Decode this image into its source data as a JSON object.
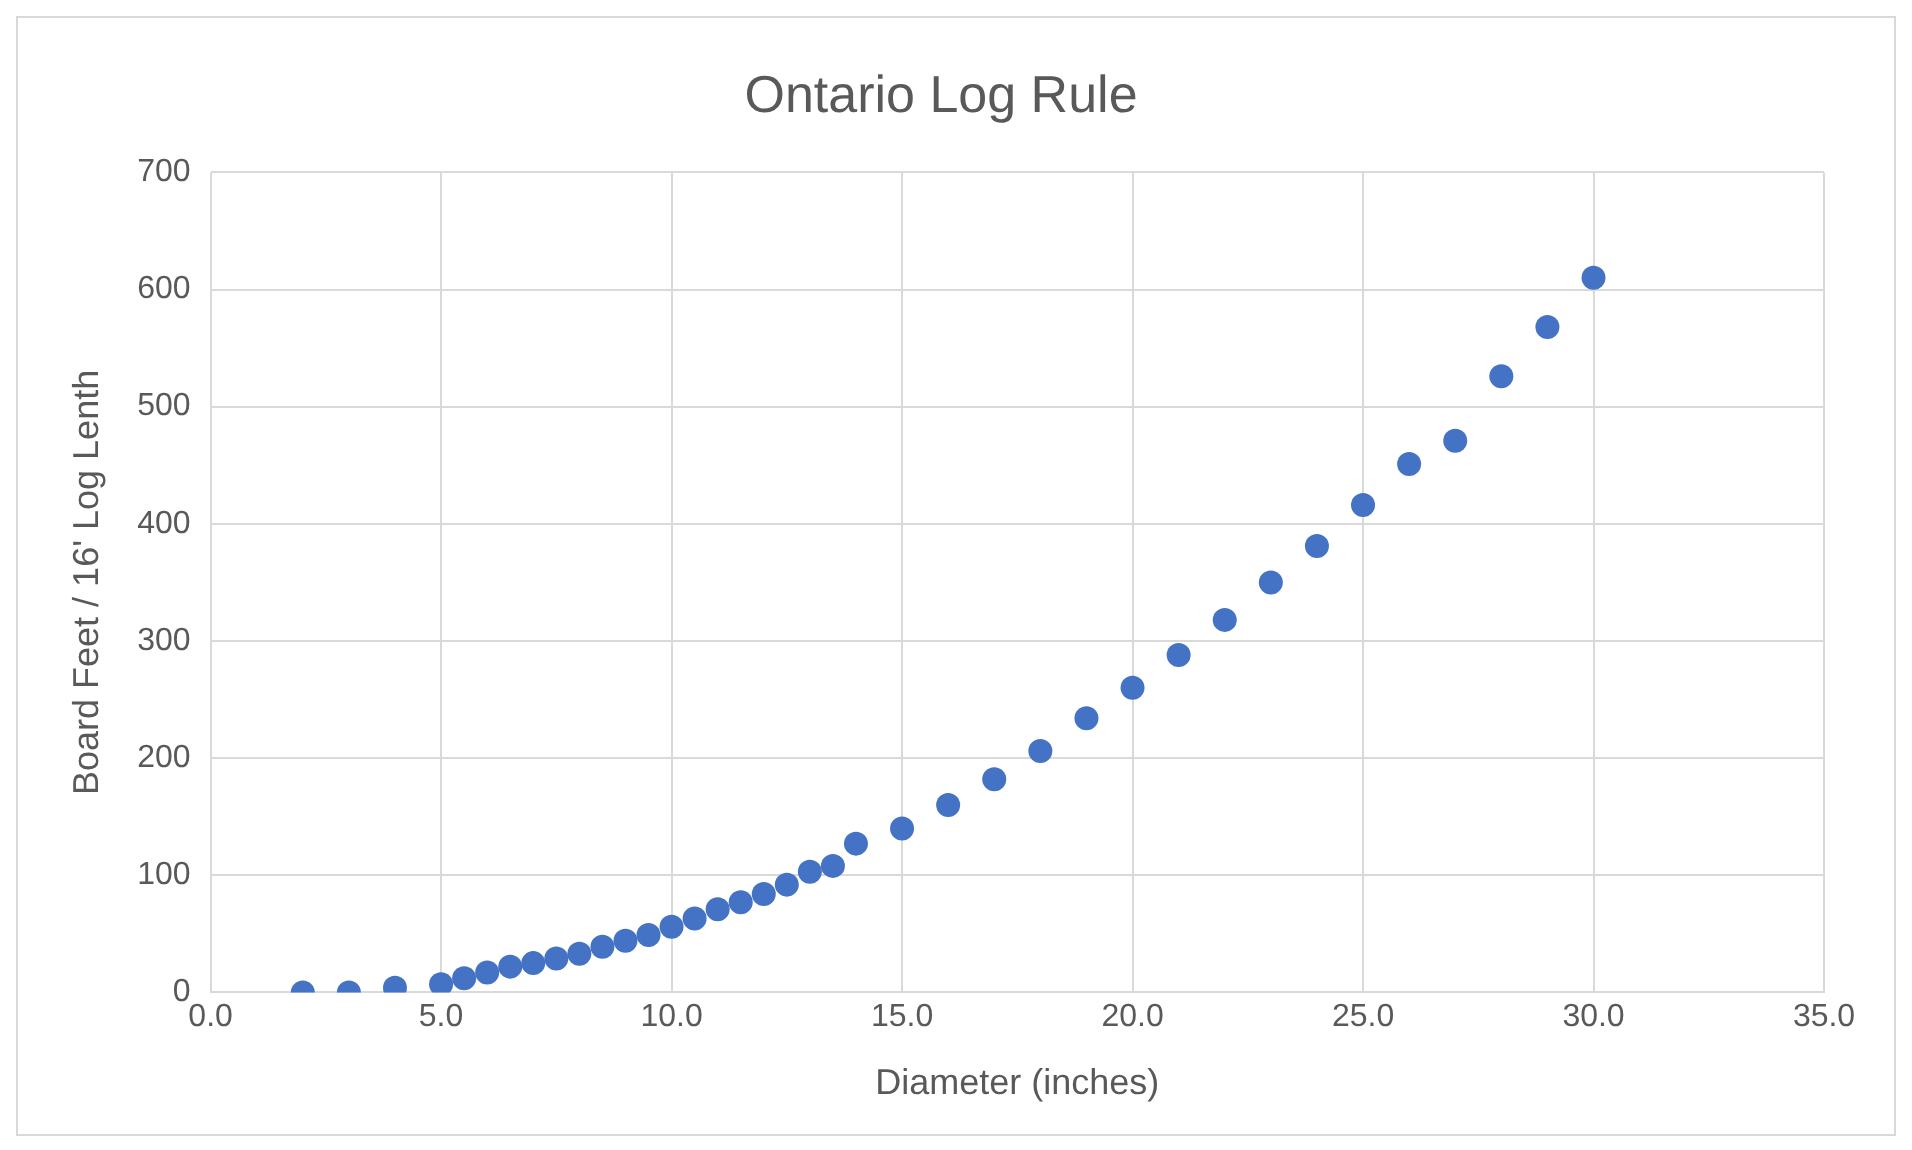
{
  "chart_data": {
    "type": "scatter",
    "title": "Ontario Log Rule",
    "xlabel": "Diameter (inches)",
    "ylabel": "Board Feet / 16' Log Lenth",
    "x": [
      2,
      3,
      4,
      5,
      5.5,
      6,
      6.5,
      7,
      7.5,
      8,
      8.5,
      9,
      9.5,
      10,
      10.5,
      11,
      11.5,
      12,
      12.5,
      13,
      13.5,
      14,
      15,
      16,
      17,
      18,
      19,
      20,
      21,
      22,
      23,
      24,
      25,
      26,
      27,
      28,
      29,
      30
    ],
    "series": [
      {
        "color": "#4472c4",
        "values": [
          0,
          0,
          4,
          7,
          12,
          17,
          22,
          25,
          29,
          33,
          39,
          44,
          49,
          56,
          63,
          71,
          77,
          84,
          92,
          103,
          108,
          127,
          140,
          160,
          182,
          206,
          234,
          260,
          288,
          318,
          350,
          381,
          416,
          451,
          471,
          526,
          568,
          610
        ]
      }
    ],
    "xlim": [
      0,
      35
    ],
    "xticks": [
      {
        "value": 0,
        "label": "0.0"
      },
      {
        "value": 5,
        "label": "5.0"
      },
      {
        "value": 10,
        "label": "10.0"
      },
      {
        "value": 15,
        "label": "15.0"
      },
      {
        "value": 20,
        "label": "20.0"
      },
      {
        "value": 25,
        "label": "25.0"
      },
      {
        "value": 30,
        "label": "30.0"
      },
      {
        "value": 35,
        "label": "35.0"
      }
    ],
    "ylim": [
      0,
      700
    ],
    "yticks": [
      0,
      100,
      200,
      300,
      400,
      500,
      600,
      700
    ],
    "grid": true,
    "legend": false,
    "marker": "circle"
  }
}
